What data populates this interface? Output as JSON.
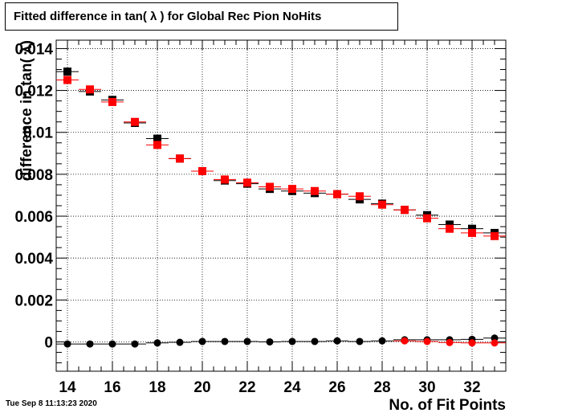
{
  "title": "Fitted difference in tan( λ ) for Global Rec Pion NoHits",
  "timestamp": "Tue Sep  8 11:13:23 2020",
  "colors": {
    "series_black": "#000000",
    "series_red": "#ff0000",
    "grid": "#000000"
  },
  "chart_data": {
    "type": "scatter",
    "title": "Fitted difference in tan( λ ) for Global Rec Pion NoHits",
    "xlabel": "No. of Fit Points",
    "ylabel": "difference in tan( λ)",
    "xlim": [
      13.5,
      33.5
    ],
    "ylim": [
      -0.0014,
      0.0144
    ],
    "x_ticks": [
      "14",
      "16",
      "18",
      "20",
      "22",
      "24",
      "26",
      "28",
      "30",
      "32"
    ],
    "y_ticks": [
      "0",
      "0.002",
      "0.004",
      "0.006",
      "0.008",
      "0.01",
      "0.012",
      "0.014"
    ],
    "grid": true,
    "x": [
      14,
      15,
      16,
      17,
      18,
      19,
      20,
      21,
      22,
      23,
      24,
      25,
      26,
      27,
      28,
      29,
      30,
      31,
      32,
      33
    ],
    "series": [
      {
        "marker": "square",
        "color": "#000000",
        "values": [
          0.0129,
          0.01195,
          0.01155,
          0.01045,
          0.0097,
          0.00875,
          0.00815,
          0.0077,
          0.00755,
          0.0073,
          0.0072,
          0.0071,
          0.00705,
          0.0068,
          0.0066,
          0.0063,
          0.00605,
          0.0056,
          0.0054,
          0.0052
        ]
      },
      {
        "marker": "square",
        "color": "#ff0000",
        "values": [
          0.0125,
          0.01205,
          0.01145,
          0.0105,
          0.0094,
          0.00875,
          0.00815,
          0.00775,
          0.0076,
          0.0074,
          0.0073,
          0.0072,
          0.00705,
          0.00695,
          0.00655,
          0.0063,
          0.0059,
          0.0054,
          0.0052,
          0.00505
        ]
      },
      {
        "marker": "circle",
        "color": "#000000",
        "values": [
          -0.0001,
          -0.0001,
          -0.0001,
          -0.0001,
          -5e-05,
          -2e-05,
          2e-05,
          2e-05,
          2e-05,
          0.0,
          2e-05,
          2e-05,
          5e-05,
          2e-05,
          5e-05,
          0.0001,
          0.0001,
          0.0001,
          0.00012,
          0.00018
        ]
      },
      {
        "marker": "circle",
        "color": "#ff0000",
        "values": [
          null,
          null,
          null,
          null,
          null,
          null,
          null,
          null,
          null,
          null,
          null,
          null,
          null,
          null,
          null,
          5e-05,
          2e-05,
          -3e-05,
          -5e-05,
          -5e-05
        ]
      }
    ]
  }
}
